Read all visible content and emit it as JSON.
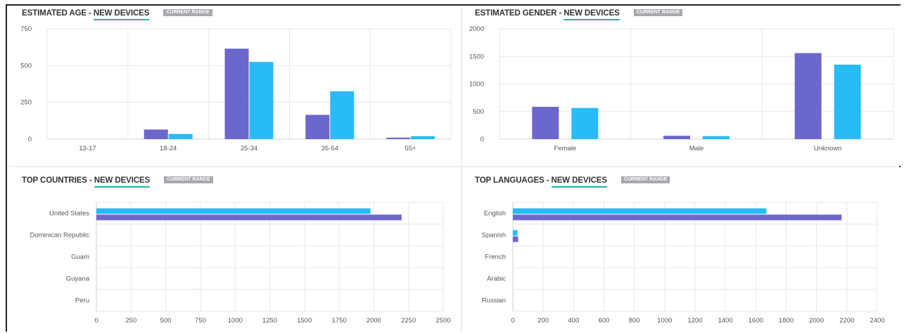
{
  "badge_label": "CURRENT RANGE",
  "colors": {
    "series_a": "#6b67cc",
    "series_b": "#29bbf5",
    "grid": "#e6e6e6",
    "accent_underline": "#26b3a3"
  },
  "panels": {
    "age": {
      "title_prefix": "ESTIMATED AGE - ",
      "title_highlight": "NEW DEVICES"
    },
    "gender": {
      "title_prefix": "ESTIMATED GENDER - ",
      "title_highlight": "NEW DEVICES"
    },
    "countries": {
      "title_prefix": "TOP COUNTRIES - ",
      "title_highlight": "NEW DEVICES"
    },
    "languages": {
      "title_prefix": "TOP LANGUAGES - ",
      "title_highlight": "NEW DEVICES"
    }
  },
  "chart_data": [
    {
      "id": "age",
      "type": "bar",
      "categories": [
        "13-17",
        "18-24",
        "25-34",
        "35-54",
        "55+"
      ],
      "series": [
        {
          "values": [
            0,
            65,
            615,
            165,
            10
          ]
        },
        {
          "values": [
            0,
            35,
            525,
            325,
            20
          ]
        }
      ],
      "ylim": [
        0,
        750
      ],
      "yticks": [
        0,
        250,
        500,
        750
      ],
      "grid": true
    },
    {
      "id": "gender",
      "type": "bar",
      "categories": [
        "Female",
        "Male",
        "Unknown"
      ],
      "series": [
        {
          "values": [
            585,
            60,
            1560
          ]
        },
        {
          "values": [
            565,
            55,
            1350
          ]
        }
      ],
      "ylim": [
        0,
        2000
      ],
      "yticks": [
        0,
        500,
        1000,
        1500,
        2000
      ],
      "grid": true
    },
    {
      "id": "countries",
      "type": "bar",
      "orientation": "horizontal",
      "categories": [
        "United States",
        "Dominican Republic",
        "Guam",
        "Guyana",
        "Peru"
      ],
      "series": [
        {
          "values": [
            2200,
            0,
            0,
            0,
            0
          ]
        },
        {
          "values": [
            1975,
            0,
            0,
            0,
            0
          ]
        }
      ],
      "xlim": [
        0,
        2500
      ],
      "xticks": [
        0,
        250,
        500,
        750,
        1000,
        1250,
        1500,
        1750,
        2000,
        2250,
        2500
      ],
      "grid": true
    },
    {
      "id": "languages",
      "type": "bar",
      "orientation": "horizontal",
      "categories": [
        "English",
        "Spanish",
        "French",
        "Arabic",
        "Russian"
      ],
      "series": [
        {
          "values": [
            2165,
            35,
            0,
            0,
            0
          ]
        },
        {
          "values": [
            1670,
            30,
            0,
            0,
            0
          ]
        }
      ],
      "xlim": [
        0,
        2400
      ],
      "xticks": [
        0,
        200,
        400,
        600,
        800,
        1000,
        1200,
        1400,
        1600,
        1800,
        2000,
        2200,
        2400
      ],
      "grid": true
    }
  ]
}
